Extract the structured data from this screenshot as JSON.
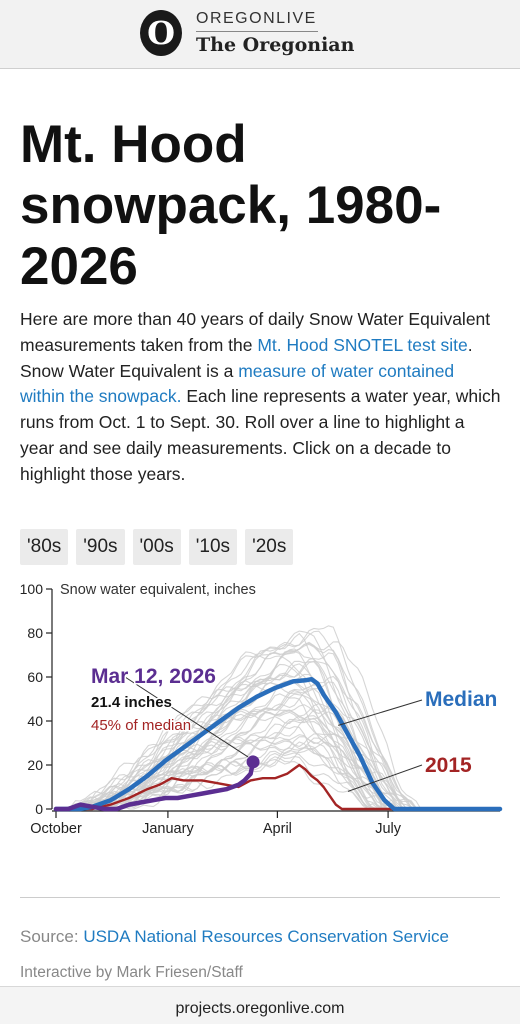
{
  "masthead": {
    "brand_top": "OREGONLIVE",
    "brand_bottom": "The Oregonian",
    "logo_letter": "O"
  },
  "article": {
    "title": "Mt. Hood snowpack, 1980-2026",
    "desc_1": "Here are more than 40 years of daily Snow Water Equivalent measurements taken from the ",
    "desc_link_1": "Mt. Hood SNOTEL test site",
    "desc_2": ". Snow Water Equivalent is a ",
    "desc_link_2": "measure of water contained within the snowpack.",
    "desc_3": " Each line represents a water year, which runs from Oct. 1 to Sept. 30. Roll over a line to highlight a year and see daily measurements. Click on a decade to highlight those years."
  },
  "decades": [
    "'80s",
    "'90s",
    "'00s",
    "'10s",
    "'20s"
  ],
  "chart_data": {
    "type": "line",
    "title": "",
    "ylabel": "Snow water equivalent, inches",
    "xlabel": "",
    "ylim": [
      0,
      100
    ],
    "yticks": [
      0,
      20,
      40,
      60,
      80,
      100
    ],
    "xlim": [
      0,
      365
    ],
    "xticks": [
      {
        "day": 0,
        "label": "October"
      },
      {
        "day": 92,
        "label": "January"
      },
      {
        "day": 182,
        "label": "April"
      },
      {
        "day": 273,
        "label": "July"
      }
    ],
    "grid": false,
    "series": [
      {
        "name": "Median",
        "color": "#2a6ebb",
        "points": [
          [
            0,
            0
          ],
          [
            20,
            0
          ],
          [
            30,
            1
          ],
          [
            45,
            4
          ],
          [
            60,
            9
          ],
          [
            75,
            15
          ],
          [
            90,
            22
          ],
          [
            105,
            28
          ],
          [
            120,
            34
          ],
          [
            135,
            40
          ],
          [
            150,
            46
          ],
          [
            165,
            51
          ],
          [
            180,
            55
          ],
          [
            195,
            58
          ],
          [
            205,
            58.5
          ],
          [
            210,
            59
          ],
          [
            215,
            57
          ],
          [
            220,
            52
          ],
          [
            230,
            44
          ],
          [
            240,
            34
          ],
          [
            250,
            24
          ],
          [
            260,
            12
          ],
          [
            270,
            4
          ],
          [
            278,
            0
          ],
          [
            365,
            0
          ]
        ]
      },
      {
        "name": "2015",
        "color": "#a32424",
        "points": [
          [
            0,
            0
          ],
          [
            30,
            0
          ],
          [
            45,
            2
          ],
          [
            60,
            5
          ],
          [
            75,
            9
          ],
          [
            85,
            11
          ],
          [
            95,
            14
          ],
          [
            105,
            13
          ],
          [
            120,
            13
          ],
          [
            130,
            12
          ],
          [
            140,
            11
          ],
          [
            150,
            10
          ],
          [
            160,
            13
          ],
          [
            170,
            14
          ],
          [
            180,
            14
          ],
          [
            190,
            16
          ],
          [
            195,
            18
          ],
          [
            200,
            20
          ],
          [
            205,
            18
          ],
          [
            210,
            15
          ],
          [
            215,
            13
          ],
          [
            220,
            10
          ],
          [
            225,
            6
          ],
          [
            230,
            2
          ],
          [
            235,
            0
          ],
          [
            365,
            0
          ]
        ]
      },
      {
        "name": "2026",
        "color": "#5b2e91",
        "points": [
          [
            0,
            0
          ],
          [
            10,
            0
          ],
          [
            20,
            2
          ],
          [
            30,
            1
          ],
          [
            40,
            0
          ],
          [
            50,
            0
          ],
          [
            60,
            2
          ],
          [
            70,
            3
          ],
          [
            80,
            4
          ],
          [
            90,
            5
          ],
          [
            100,
            5
          ],
          [
            110,
            6
          ],
          [
            120,
            7
          ],
          [
            130,
            8
          ],
          [
            140,
            9
          ],
          [
            150,
            11
          ],
          [
            155,
            13
          ],
          [
            160,
            16
          ],
          [
            162,
            21.4
          ]
        ]
      }
    ],
    "annotations": {
      "current_date": "Mar 12, 2026",
      "current_value": "21.4 inches",
      "current_pct": "45% of median",
      "median_label": "Median",
      "year_label": "2015"
    }
  },
  "footer": {
    "source_prefix": "Source: ",
    "source_link": "USDA National Resources Conservation Service",
    "credit": "Interactive by Mark Friesen/Staff",
    "url": "projects.oregonlive.com"
  }
}
